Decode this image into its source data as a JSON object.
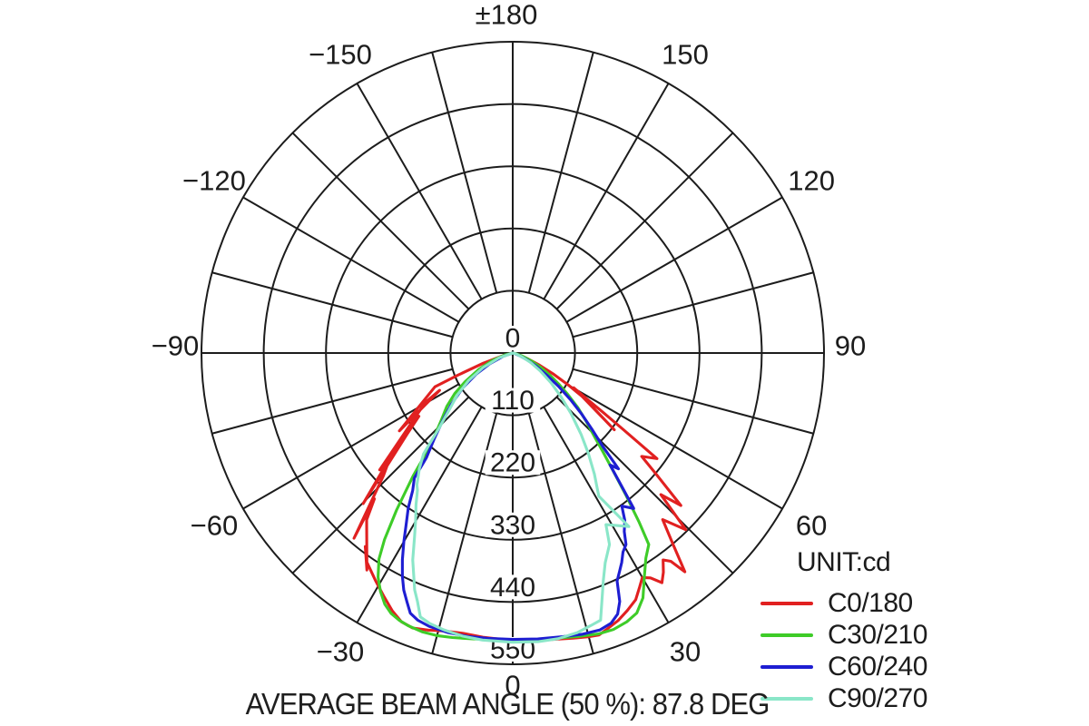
{
  "chart_data": {
    "type": "line",
    "subtype": "polar-photometric",
    "title": "",
    "unit_label": "UNIT:cd",
    "annotation": "AVERAGE BEAM ANGLE (50 %): 87.8 DEG",
    "average_beam_angle_50_pct_deg": 87.8,
    "grid": true,
    "angle_axis": {
      "tick_step_deg": 15,
      "label_step_deg": 30,
      "zero_direction": "down",
      "labels": [
        {
          "deg": 180,
          "text": "±180"
        },
        {
          "deg": -150,
          "text": "−150"
        },
        {
          "deg": 150,
          "text": "150"
        },
        {
          "deg": -120,
          "text": "−120"
        },
        {
          "deg": 120,
          "text": "120"
        },
        {
          "deg": -90,
          "text": "−90"
        },
        {
          "deg": 90,
          "text": "90"
        },
        {
          "deg": -60,
          "text": "−60"
        },
        {
          "deg": 60,
          "text": "60"
        },
        {
          "deg": -30,
          "text": "−30"
        },
        {
          "deg": 30,
          "text": "30"
        },
        {
          "deg": 0,
          "text": "0"
        }
      ]
    },
    "radial_axis": {
      "min": 0,
      "max": 550,
      "ring_step": 110,
      "labels": [
        {
          "value": 0,
          "text": "0"
        },
        {
          "value": 110,
          "text": "110"
        },
        {
          "value": 220,
          "text": "220"
        },
        {
          "value": 330,
          "text": "330"
        },
        {
          "value": 440,
          "text": "440"
        },
        {
          "value": 550,
          "text": "550"
        }
      ]
    },
    "series": [
      {
        "name": "C0/180",
        "color": "#e12020",
        "points": [
          [
            -80,
            0
          ],
          [
            -75,
            18
          ],
          [
            -71,
            55
          ],
          [
            -68,
            105
          ],
          [
            -66.5,
            150
          ],
          [
            -55.5,
            243
          ],
          [
            -63,
            145
          ],
          [
            -60.5,
            178
          ],
          [
            -48.7,
            313
          ],
          [
            -56,
            200
          ],
          [
            -52.5,
            235
          ],
          [
            -44.8,
            375
          ],
          [
            -49.5,
            285
          ],
          [
            -46.5,
            315
          ],
          [
            -40.6,
            431
          ],
          [
            -43.5,
            355
          ],
          [
            -41.2,
            392
          ],
          [
            -33.9,
            462
          ],
          [
            -37.3,
            430
          ],
          [
            -35,
            450
          ],
          [
            -31,
            470
          ],
          [
            -28,
            486
          ],
          [
            -25,
            503
          ],
          [
            -22.5,
            514
          ],
          [
            -20,
            517
          ],
          [
            -17,
            512
          ],
          [
            -14,
            506
          ],
          [
            -10,
            503
          ],
          [
            -6,
            505
          ],
          [
            -3,
            506
          ],
          [
            0,
            507
          ],
          [
            4,
            509
          ],
          [
            8,
            511
          ],
          [
            12,
            515
          ],
          [
            15,
            519
          ],
          [
            17,
            521
          ],
          [
            19,
            515
          ],
          [
            21.5,
            508
          ],
          [
            24,
            498
          ],
          [
            26.5,
            487
          ],
          [
            28.5,
            470
          ],
          [
            30,
            458
          ],
          [
            31.5,
            466
          ],
          [
            33,
            484
          ],
          [
            34.5,
            470
          ],
          [
            36,
            452
          ],
          [
            37.2,
            462
          ],
          [
            38.2,
            492
          ],
          [
            40,
            440
          ],
          [
            42,
            396
          ],
          [
            44.4,
            437
          ],
          [
            46.3,
            362
          ],
          [
            47.8,
            401
          ],
          [
            49.8,
            332
          ],
          [
            51.3,
            292
          ],
          [
            53.8,
            316
          ],
          [
            55.3,
            238
          ],
          [
            56.8,
            188
          ],
          [
            58.3,
            152
          ],
          [
            60.3,
            124
          ],
          [
            52.9,
            225
          ],
          [
            57.8,
            148
          ],
          [
            60,
            115
          ],
          [
            62.5,
            82
          ],
          [
            65.5,
            52
          ],
          [
            69,
            28
          ],
          [
            73,
            12
          ],
          [
            78,
            3
          ],
          [
            82,
            0
          ]
        ]
      },
      {
        "name": "C30/210",
        "color": "#3ecc28",
        "points": [
          [
            -83,
            0
          ],
          [
            -77,
            14
          ],
          [
            -70,
            38
          ],
          [
            -64,
            68
          ],
          [
            -59,
            98
          ],
          [
            -55,
            125
          ],
          [
            -51,
            150
          ],
          [
            -47,
            172
          ],
          [
            -44,
            195
          ],
          [
            -41.5,
            222
          ],
          [
            -39,
            280
          ],
          [
            -36.5,
            345
          ],
          [
            -34.5,
            400
          ],
          [
            -33,
            434
          ],
          [
            -31,
            462
          ],
          [
            -29,
            482
          ],
          [
            -27,
            498
          ],
          [
            -25,
            508
          ],
          [
            -23,
            513
          ],
          [
            -21,
            516
          ],
          [
            -18,
            518
          ],
          [
            -15,
            517
          ],
          [
            -12,
            514
          ],
          [
            -8,
            510
          ],
          [
            -4,
            508
          ],
          [
            0,
            507
          ],
          [
            4,
            508
          ],
          [
            9,
            510
          ],
          [
            13,
            514
          ],
          [
            17,
            519
          ],
          [
            20,
            520
          ],
          [
            23,
            516
          ],
          [
            25.5,
            509
          ],
          [
            28,
            490
          ],
          [
            30.7,
            456
          ],
          [
            33,
            432
          ],
          [
            35.4,
            415
          ],
          [
            36.8,
            372
          ],
          [
            38.5,
            322
          ],
          [
            40.5,
            272
          ],
          [
            42.5,
            235
          ],
          [
            44.5,
            205
          ],
          [
            47,
            178
          ],
          [
            50,
            150
          ],
          [
            53,
            122
          ],
          [
            56,
            98
          ],
          [
            59,
            78
          ],
          [
            63,
            55
          ],
          [
            67,
            36
          ],
          [
            72,
            18
          ],
          [
            78,
            6
          ],
          [
            84,
            0
          ]
        ]
      },
      {
        "name": "C60/240",
        "color": "#1e1ed2",
        "points": [
          [
            -78,
            0
          ],
          [
            -71,
            18
          ],
          [
            -65,
            45
          ],
          [
            -60,
            75
          ],
          [
            -55,
            108
          ],
          [
            -50,
            142
          ],
          [
            -46,
            172
          ],
          [
            -42.5,
            205
          ],
          [
            -39.5,
            240
          ],
          [
            -38.2,
            281
          ],
          [
            -36.1,
            300
          ],
          [
            -34,
            330
          ],
          [
            -32,
            355
          ],
          [
            -30,
            385
          ],
          [
            -28.1,
            414
          ],
          [
            -26.3,
            440
          ],
          [
            -24.7,
            461
          ],
          [
            -23,
            478
          ],
          [
            -21.5,
            494
          ],
          [
            -19.6,
            501
          ],
          [
            -17,
            505
          ],
          [
            -13,
            507
          ],
          [
            -9,
            507
          ],
          [
            -5,
            506
          ],
          [
            0,
            506
          ],
          [
            5,
            507
          ],
          [
            10,
            509
          ],
          [
            14,
            512
          ],
          [
            17.5,
            513
          ],
          [
            20,
            508
          ],
          [
            21.9,
            497
          ],
          [
            23.3,
            478
          ],
          [
            24.6,
            443
          ],
          [
            26,
            430
          ],
          [
            27.5,
            417
          ],
          [
            29,
            402
          ],
          [
            30.6,
            393
          ],
          [
            32,
            372
          ],
          [
            33.8,
            356
          ],
          [
            35.5,
            332
          ],
          [
            37.9,
            348
          ],
          [
            39.5,
            298
          ],
          [
            41,
            262
          ],
          [
            42.4,
            277
          ],
          [
            44,
            228
          ],
          [
            46,
            196
          ],
          [
            48.5,
            162
          ],
          [
            51,
            132
          ],
          [
            54,
            100
          ],
          [
            57,
            72
          ],
          [
            60.5,
            48
          ],
          [
            64.5,
            28
          ],
          [
            69,
            13
          ],
          [
            75,
            3
          ],
          [
            80,
            0
          ]
        ]
      },
      {
        "name": "C90/270",
        "color": "#8ae6c8",
        "points": [
          [
            -78,
            0
          ],
          [
            -71,
            25
          ],
          [
            -64,
            58
          ],
          [
            -58,
            92
          ],
          [
            -53,
            122
          ],
          [
            -48,
            152
          ],
          [
            -44.5,
            185
          ],
          [
            -41.5,
            238
          ],
          [
            -39,
            262
          ],
          [
            -36,
            288
          ],
          [
            -34.8,
            295
          ],
          [
            -32.5,
            318
          ],
          [
            -30.1,
            342
          ],
          [
            -28,
            370
          ],
          [
            -25.8,
            406
          ],
          [
            -24,
            430
          ],
          [
            -22.5,
            453
          ],
          [
            -21,
            470
          ],
          [
            -19.3,
            494
          ],
          [
            -17,
            500
          ],
          [
            -14,
            504
          ],
          [
            -10,
            508
          ],
          [
            -6,
            510
          ],
          [
            0,
            511
          ],
          [
            5,
            512
          ],
          [
            9,
            511
          ],
          [
            13,
            507
          ],
          [
            16,
            501
          ],
          [
            18.2,
            497
          ],
          [
            19.7,
            467
          ],
          [
            21.7,
            433
          ],
          [
            23.8,
            405
          ],
          [
            26.8,
            379
          ],
          [
            28.5,
            345
          ],
          [
            33.8,
            369
          ],
          [
            31,
            295
          ],
          [
            34,
            258
          ],
          [
            37,
            222
          ],
          [
            40,
            188
          ],
          [
            44,
            148
          ],
          [
            48,
            114
          ],
          [
            52,
            86
          ],
          [
            57,
            58
          ],
          [
            62,
            36
          ],
          [
            68,
            17
          ],
          [
            74,
            6
          ],
          [
            80,
            0
          ]
        ]
      }
    ],
    "legend_position": "bottom-right"
  },
  "legend": {
    "title": "UNIT:cd",
    "entries": [
      {
        "label": "C0/180",
        "color": "#e12020"
      },
      {
        "label": "C30/210",
        "color": "#3ecc28"
      },
      {
        "label": "C60/240",
        "color": "#1e1ed2"
      },
      {
        "label": "C90/270",
        "color": "#8ae6c8"
      }
    ]
  },
  "colors": {
    "grid": "#1c1c1c",
    "text": "#1c1c1c",
    "background": "#ffffff"
  }
}
